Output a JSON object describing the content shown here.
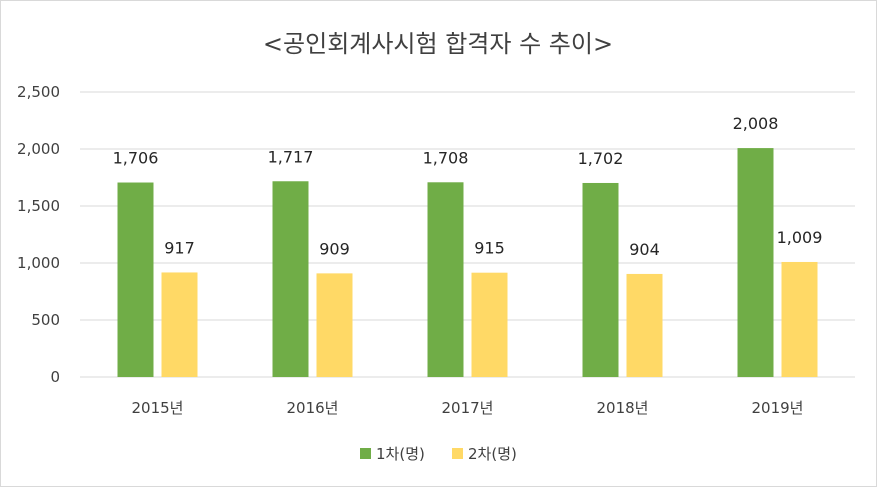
{
  "chart_data": {
    "type": "bar",
    "title": "<공인회계사시험 합격자 수 추이>",
    "categories": [
      "2015년",
      "2016년",
      "2017년",
      "2018년",
      "2019년"
    ],
    "series": [
      {
        "name": "1차(명)",
        "values": [
          1706,
          1717,
          1708,
          1702,
          2008
        ],
        "labels": [
          "1,706",
          "1,717",
          "1,708",
          "1,702",
          "2,008"
        ],
        "color": "#70ad47"
      },
      {
        "name": "2차(명)",
        "values": [
          917,
          909,
          915,
          904,
          1009
        ],
        "labels": [
          "917",
          "909",
          "915",
          "904",
          "1,009"
        ],
        "color": "#ffd966"
      }
    ],
    "ylim": [
      0,
      2500
    ],
    "yticks": [
      0,
      500,
      1000,
      1500,
      2000,
      2500
    ],
    "ytick_labels": [
      "0",
      "500",
      "1,000",
      "1,500",
      "2,000",
      "2,500"
    ],
    "grid": true,
    "legend_position": "bottom",
    "xlabel": "",
    "ylabel": ""
  }
}
